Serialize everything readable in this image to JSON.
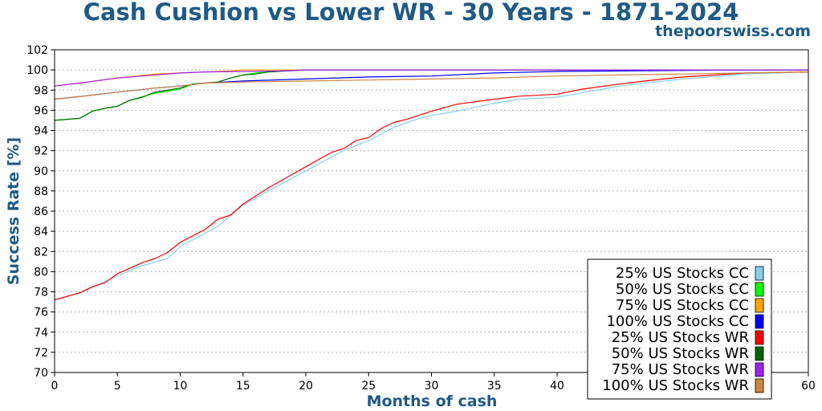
{
  "site": "thepoorswiss.com",
  "chart_data": {
    "type": "line",
    "title": "Cash Cushion vs Lower WR - 30 Years - 1871-2024",
    "xlabel": "Months of cash",
    "ylabel": "Success Rate [%]",
    "xlim": [
      0,
      60
    ],
    "ylim": [
      70,
      102
    ],
    "xticks": [
      0,
      5,
      10,
      15,
      20,
      25,
      30,
      35,
      40,
      45,
      50,
      55,
      60
    ],
    "yticks": [
      70,
      72,
      74,
      76,
      78,
      80,
      82,
      84,
      86,
      88,
      90,
      92,
      94,
      96,
      98,
      100,
      102
    ],
    "grid": "horizontal-dotted",
    "legend_position": "bottom-right",
    "series": [
      {
        "name": "25% US Stocks CC",
        "color": "#87ceeb",
        "x": [
          0,
          2,
          4,
          5,
          7,
          9,
          10,
          12,
          13,
          15,
          17,
          20,
          23,
          25,
          27,
          29,
          30,
          32,
          35,
          37,
          40,
          45,
          50,
          55,
          60
        ],
        "y": [
          77.2,
          77.9,
          79.0,
          79.6,
          80.6,
          81.3,
          82.5,
          83.8,
          84.5,
          86.6,
          88.0,
          90.0,
          92.0,
          93.0,
          94.3,
          95.2,
          95.5,
          95.9,
          96.7,
          97.1,
          97.3,
          98.4,
          99.1,
          99.6,
          99.8
        ]
      },
      {
        "name": "50% US Stocks CC",
        "color": "#00ff00",
        "x": [
          0,
          2,
          3,
          4,
          5,
          6,
          8,
          10,
          11,
          13,
          14,
          15,
          16,
          17,
          18,
          20,
          30,
          40,
          50,
          60
        ],
        "y": [
          95.0,
          95.2,
          95.9,
          96.2,
          96.4,
          97.0,
          97.7,
          98.1,
          98.6,
          98.8,
          99.2,
          99.5,
          99.7,
          99.8,
          99.9,
          100,
          100,
          100,
          100,
          100
        ]
      },
      {
        "name": "75% US Stocks CC",
        "color": "#ffa500",
        "x": [
          0,
          2,
          5,
          8,
          10,
          12,
          14,
          15,
          17,
          18,
          20,
          30,
          40,
          50,
          60
        ],
        "y": [
          98.4,
          98.7,
          99.2,
          99.6,
          99.7,
          99.8,
          99.9,
          100,
          100,
          100,
          100,
          100,
          100,
          100,
          100
        ]
      },
      {
        "name": "100% US Stocks CC",
        "color": "#0000ff",
        "x": [
          0,
          3,
          5,
          8,
          10,
          12,
          15,
          20,
          25,
          30,
          35,
          40,
          45,
          50,
          55,
          60
        ],
        "y": [
          97.1,
          97.5,
          97.8,
          98.2,
          98.4,
          98.7,
          98.9,
          99.1,
          99.3,
          99.4,
          99.7,
          99.85,
          99.9,
          99.95,
          100,
          100
        ]
      },
      {
        "name": "25% US Stocks WR",
        "color": "#ff0000",
        "x": [
          0,
          2,
          3,
          4,
          5,
          7,
          8,
          9,
          10,
          12,
          13,
          14,
          15,
          17,
          19,
          20,
          22,
          23,
          24,
          25,
          26,
          27,
          28,
          30,
          32,
          35,
          37,
          40,
          42,
          45,
          47,
          50,
          55,
          60
        ],
        "y": [
          77.2,
          77.9,
          78.5,
          78.9,
          79.8,
          80.9,
          81.3,
          81.9,
          82.9,
          84.2,
          85.2,
          85.6,
          86.7,
          88.3,
          89.7,
          90.4,
          91.8,
          92.2,
          93.0,
          93.3,
          94.2,
          94.8,
          95.1,
          95.9,
          96.6,
          97.1,
          97.4,
          97.6,
          98.1,
          98.6,
          98.9,
          99.3,
          99.7,
          99.8
        ]
      },
      {
        "name": "50% US Stocks WR",
        "color": "#006400",
        "x": [
          0,
          2,
          3,
          4,
          5,
          6,
          7,
          8,
          10,
          11,
          13,
          14,
          15,
          16,
          17,
          20,
          30,
          40,
          50,
          60
        ],
        "y": [
          95.0,
          95.2,
          95.9,
          96.2,
          96.4,
          97.0,
          97.3,
          97.8,
          98.2,
          98.6,
          98.8,
          99.2,
          99.5,
          99.6,
          99.8,
          100,
          100,
          100,
          100,
          100
        ]
      },
      {
        "name": "75% US Stocks WR",
        "color": "#a020f0",
        "x": [
          0,
          2,
          5,
          8,
          10,
          12,
          15,
          18,
          20,
          30,
          40,
          50,
          60
        ],
        "y": [
          98.4,
          98.7,
          99.2,
          99.5,
          99.7,
          99.8,
          99.85,
          99.9,
          100,
          100,
          100,
          100,
          100
        ]
      },
      {
        "name": "100% US Stocks WR",
        "color": "#cd853f",
        "x": [
          0,
          3,
          5,
          8,
          10,
          12,
          15,
          20,
          25,
          30,
          35,
          40,
          45,
          50,
          55,
          60
        ],
        "y": [
          97.1,
          97.5,
          97.8,
          98.2,
          98.4,
          98.7,
          98.8,
          98.9,
          99.0,
          99.1,
          99.2,
          99.4,
          99.5,
          99.6,
          99.7,
          99.8
        ]
      }
    ]
  }
}
